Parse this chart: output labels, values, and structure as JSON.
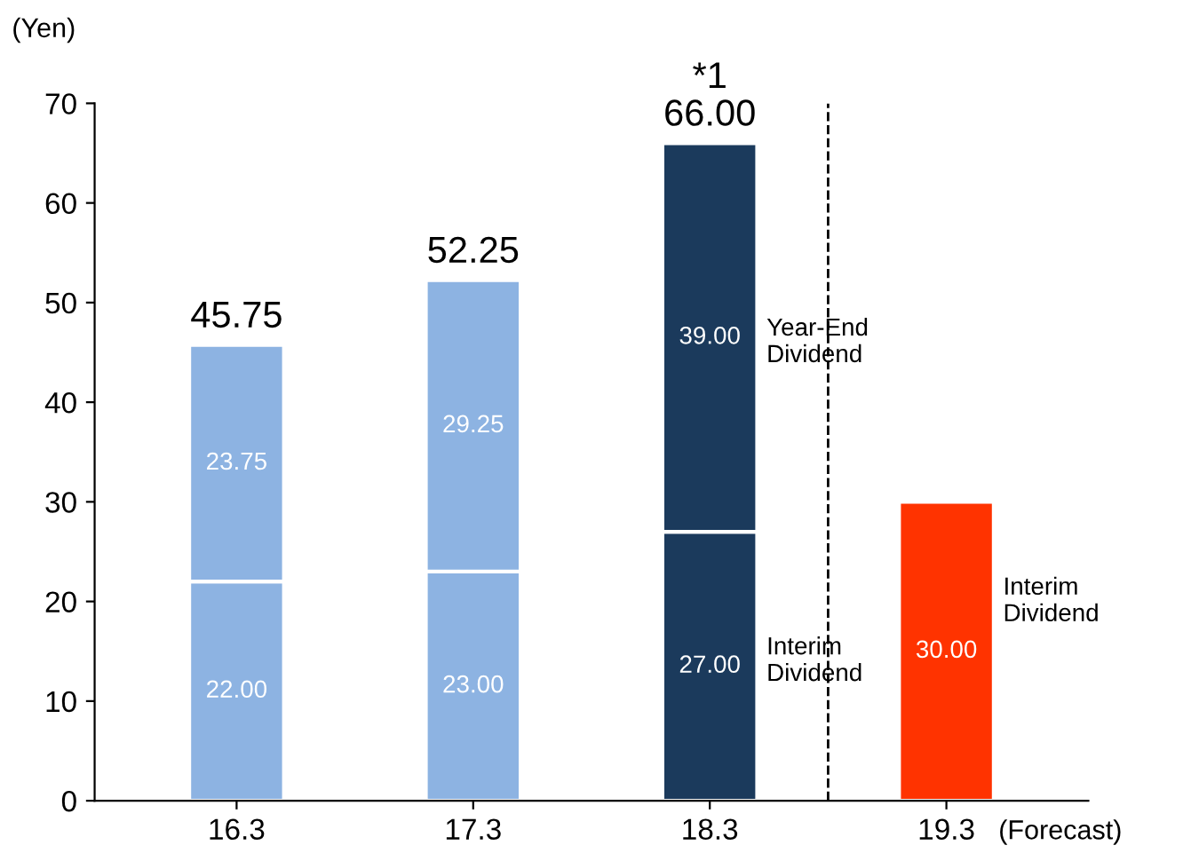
{
  "chart_data": {
    "type": "bar",
    "stacked": true,
    "ylabel": "(Yen)",
    "categories": [
      "16.3",
      "17.3",
      "18.3",
      "19.3"
    ],
    "series": [
      {
        "colors": [
          "#8db3e2",
          "#8db3e2",
          "#1b3a5c",
          "#ff3300"
        ],
        "values": [
          22.0,
          23.0,
          27.0,
          30.0
        ],
        "value_labels": [
          "22.00",
          "23.00",
          "27.00",
          "30.00"
        ]
      },
      {
        "colors": [
          "#8db3e2",
          "#8db3e2",
          "#1b3a5c",
          null
        ],
        "values": [
          23.75,
          29.25,
          39.0,
          null
        ],
        "value_labels": [
          "23.75",
          "29.25",
          "39.00",
          null
        ]
      }
    ],
    "totals": [
      "45.75",
      "52.25",
      "66.00",
      null
    ],
    "ylim": [
      0,
      70
    ],
    "yticks": [
      0,
      10,
      20,
      30,
      40,
      50,
      60,
      70
    ],
    "annotations": [
      "*1",
      "Year-End\nDividend",
      "Interim\nDividend",
      "Interim\nDividend",
      "(Forecast)"
    ],
    "grid": false,
    "legend": false
  }
}
